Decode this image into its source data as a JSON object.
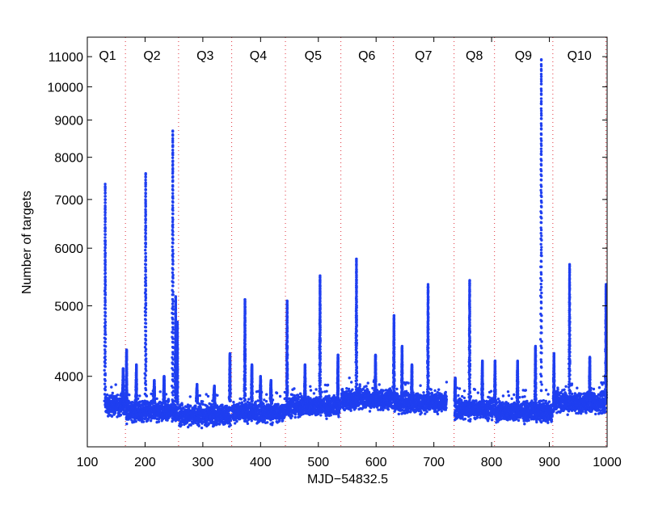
{
  "chart_data": {
    "type": "scatter",
    "title": "",
    "xlabel": "MJD−54832.5",
    "ylabel": "Number of targets",
    "xlim": [
      100,
      1000
    ],
    "ylim": [
      3200,
      11700
    ],
    "yscale": "log",
    "grid": false,
    "legend": "none",
    "point_color": "#1f3ff0",
    "boundary_color": "#e0303a",
    "x_ticks": [
      100,
      200,
      300,
      400,
      500,
      600,
      700,
      800,
      900,
      1000
    ],
    "x_tick_labels": [
      "100",
      "200",
      "300",
      "400",
      "500",
      "600",
      "700",
      "800",
      "900",
      "1000"
    ],
    "y_ticks": [
      4000,
      5000,
      6000,
      7000,
      8000,
      9000,
      10000,
      11000
    ],
    "y_tick_labels": [
      "4000",
      "5000",
      "6000",
      "7000",
      "8000",
      "9000",
      "10000",
      "11000"
    ],
    "quarter_boundaries": [
      166,
      258,
      350,
      443,
      539,
      630,
      735,
      805,
      906,
      998
    ],
    "quarters": [
      {
        "label": "Q1",
        "x": 135
      },
      {
        "label": "Q2",
        "x": 212
      },
      {
        "label": "Q3",
        "x": 304
      },
      {
        "label": "Q4",
        "x": 396
      },
      {
        "label": "Q5",
        "x": 491
      },
      {
        "label": "Q6",
        "x": 584
      },
      {
        "label": "Q7",
        "x": 682
      },
      {
        "label": "Q8",
        "x": 770
      },
      {
        "label": "Q9",
        "x": 855
      },
      {
        "label": "Q10",
        "x": 952
      }
    ],
    "baseline_segments": [
      {
        "x_start": 131,
        "x_end": 165,
        "y": 3650
      },
      {
        "x_start": 167,
        "x_end": 257,
        "y": 3580
      },
      {
        "x_start": 259,
        "x_end": 349,
        "y": 3540
      },
      {
        "x_start": 351,
        "x_end": 442,
        "y": 3570
      },
      {
        "x_start": 444,
        "x_end": 538,
        "y": 3640
      },
      {
        "x_start": 540,
        "x_end": 629,
        "y": 3720
      },
      {
        "x_start": 631,
        "x_end": 722,
        "y": 3680
      },
      {
        "x_start": 736,
        "x_end": 804,
        "y": 3610
      },
      {
        "x_start": 806,
        "x_end": 905,
        "y": 3580
      },
      {
        "x_start": 907,
        "x_end": 998,
        "y": 3680
      }
    ],
    "spikes": [
      {
        "x": 131,
        "y": 7350
      },
      {
        "x": 162,
        "y": 4100
      },
      {
        "x": 168,
        "y": 4350
      },
      {
        "x": 185,
        "y": 4150
      },
      {
        "x": 201,
        "y": 7600
      },
      {
        "x": 216,
        "y": 3950
      },
      {
        "x": 233,
        "y": 4000
      },
      {
        "x": 248,
        "y": 8700
      },
      {
        "x": 253,
        "y": 5150
      },
      {
        "x": 256,
        "y": 4750
      },
      {
        "x": 290,
        "y": 3900
      },
      {
        "x": 320,
        "y": 3880
      },
      {
        "x": 347,
        "y": 4300
      },
      {
        "x": 373,
        "y": 5100
      },
      {
        "x": 385,
        "y": 4150
      },
      {
        "x": 400,
        "y": 4000
      },
      {
        "x": 418,
        "y": 3950
      },
      {
        "x": 446,
        "y": 5080
      },
      {
        "x": 477,
        "y": 4150
      },
      {
        "x": 503,
        "y": 5500
      },
      {
        "x": 534,
        "y": 4280
      },
      {
        "x": 566,
        "y": 5800
      },
      {
        "x": 599,
        "y": 4280
      },
      {
        "x": 631,
        "y": 4850
      },
      {
        "x": 645,
        "y": 4400
      },
      {
        "x": 662,
        "y": 4150
      },
      {
        "x": 690,
        "y": 5350
      },
      {
        "x": 737,
        "y": 3980
      },
      {
        "x": 762,
        "y": 5420
      },
      {
        "x": 784,
        "y": 4200
      },
      {
        "x": 806,
        "y": 4200
      },
      {
        "x": 845,
        "y": 4200
      },
      {
        "x": 876,
        "y": 4400
      },
      {
        "x": 886,
        "y": 10900
      },
      {
        "x": 908,
        "y": 4300
      },
      {
        "x": 935,
        "y": 5700
      },
      {
        "x": 970,
        "y": 4250
      },
      {
        "x": 998,
        "y": 5350
      }
    ]
  }
}
